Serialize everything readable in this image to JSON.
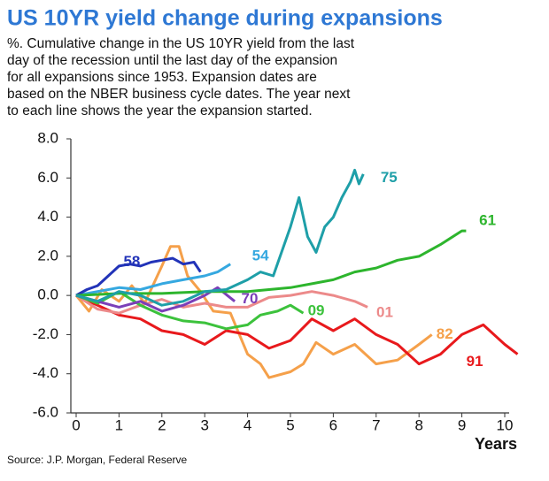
{
  "chart_data": {
    "type": "line",
    "title": "US 10YR yield change during expansions",
    "subtitle": [
      "%. Cumulative change in the US 10YR yield from the last",
      "day of the recession until the last day of the expansion",
      "for all expansions since 1953. Expansion dates are",
      "based on the NBER business cycle dates. The year next",
      "to each line shows the year the expansion started."
    ],
    "x_label": "Years",
    "source": "Source: J.P. Morgan, Federal Reserve",
    "xlim": [
      0,
      10
    ],
    "ylim": [
      -6,
      8
    ],
    "xticks": [
      0,
      1,
      2,
      3,
      4,
      5,
      6,
      7,
      8,
      9,
      10
    ],
    "yticks": [
      {
        "value": -6,
        "label": "-6.0"
      },
      {
        "value": -4,
        "label": "-4.0"
      },
      {
        "value": -2,
        "label": "-2.0"
      },
      {
        "value": 0,
        "label": "0.0"
      },
      {
        "value": 2,
        "label": "2.0"
      },
      {
        "value": 4,
        "label": "4.0"
      },
      {
        "value": 6,
        "label": "6.0"
      },
      {
        "value": 8,
        "label": "8.0"
      }
    ],
    "series": [
      {
        "name": "82",
        "color": "#F5A04A",
        "x": [
          0,
          0.3,
          0.6,
          1,
          1.3,
          1.6,
          2,
          2.2,
          2.4,
          2.6,
          2.9,
          3.2,
          3.6,
          4,
          4.3,
          4.5,
          5,
          5.3,
          5.6,
          6,
          6.5,
          7,
          7.5,
          8,
          8.3
        ],
        "values": [
          0,
          -0.8,
          0.3,
          -0.3,
          0.5,
          -0.4,
          1.5,
          2.5,
          2.5,
          1,
          0.2,
          -0.8,
          -0.9,
          -3,
          -3.5,
          -4.2,
          -3.9,
          -3.5,
          -2.4,
          -3,
          -2.5,
          -3.5,
          -3.3,
          -2.5,
          -2
        ]
      },
      {
        "name": "91",
        "color": "#E8191C",
        "x": [
          0,
          0.5,
          1,
          1.5,
          2,
          2.5,
          3,
          3.5,
          4,
          4.5,
          5,
          5.5,
          6,
          6.5,
          7,
          7.5,
          8,
          8.5,
          9,
          9.5,
          10,
          10.3
        ],
        "values": [
          0,
          -0.5,
          -1,
          -1.2,
          -1.8,
          -2,
          -2.5,
          -1.8,
          -2,
          -2.7,
          -2.3,
          -1.2,
          -1.8,
          -1.2,
          -2,
          -2.5,
          -3.5,
          -3,
          -2,
          -1.5,
          -2.5,
          -3
        ]
      },
      {
        "name": "01",
        "color": "#EC8A8A",
        "x": [
          0,
          0.5,
          1,
          1.5,
          2,
          2.5,
          3,
          3.5,
          4,
          4.5,
          5,
          5.5,
          6,
          6.5,
          6.8
        ],
        "values": [
          0,
          -0.7,
          -0.9,
          -0.5,
          -0.2,
          -0.6,
          -0.4,
          -0.6,
          -0.6,
          -0.1,
          0,
          0.2,
          0,
          -0.3,
          -0.6
        ]
      },
      {
        "name": "09",
        "color": "#3CC23C",
        "x": [
          0,
          0.5,
          1,
          1.5,
          2,
          2.5,
          3,
          3.5,
          4,
          4.3,
          4.7,
          5,
          5.3
        ],
        "values": [
          0,
          -0.4,
          0.2,
          -0.5,
          -1,
          -1.3,
          -1.4,
          -1.7,
          -1.5,
          -1,
          -0.8,
          -0.5,
          -0.9
        ]
      },
      {
        "name": "70",
        "color": "#7B3FB8",
        "x": [
          0,
          0.5,
          1,
          1.5,
          2,
          2.5,
          3,
          3.3,
          3.7
        ],
        "values": [
          0,
          -0.3,
          -0.6,
          -0.3,
          -0.8,
          -0.5,
          0,
          0.4,
          -0.3
        ]
      },
      {
        "name": "54",
        "color": "#35A8E0",
        "x": [
          0,
          0.5,
          1,
          1.5,
          2,
          2.5,
          3,
          3.3,
          3.6
        ],
        "values": [
          0,
          0.2,
          0.4,
          0.3,
          0.6,
          0.8,
          1,
          1.2,
          1.6
        ]
      },
      {
        "name": "58",
        "color": "#2233B8",
        "x": [
          0,
          0.25,
          0.5,
          0.75,
          1,
          1.25,
          1.5,
          1.75,
          2,
          2.25,
          2.5,
          2.75,
          2.9
        ],
        "values": [
          0,
          0.3,
          0.5,
          1,
          1.5,
          1.6,
          1.5,
          1.7,
          1.8,
          1.9,
          1.6,
          1.7,
          1.2
        ]
      },
      {
        "name": "61",
        "color": "#2DB52D",
        "x": [
          0,
          1,
          2,
          3,
          4,
          5,
          5.5,
          6,
          6.5,
          7,
          7.5,
          8,
          8.5,
          9,
          9.1
        ],
        "values": [
          0,
          0.1,
          0.1,
          0.2,
          0.2,
          0.4,
          0.6,
          0.8,
          1.2,
          1.4,
          1.8,
          2,
          2.6,
          3.3,
          3.3
        ]
      },
      {
        "name": "75",
        "color": "#1E9FA8",
        "x": [
          0,
          0.5,
          1,
          1.5,
          2,
          2.5,
          3,
          3.5,
          4,
          4.3,
          4.6,
          5,
          5.2,
          5.4,
          5.6,
          5.8,
          6,
          6.2,
          6.4,
          6.5,
          6.6,
          6.7
        ],
        "values": [
          0,
          -0.3,
          0.2,
          0,
          -0.5,
          -0.3,
          0.2,
          0.3,
          0.8,
          1.2,
          1,
          3.5,
          5,
          3,
          2.2,
          3.5,
          4,
          5,
          5.8,
          6.4,
          5.7,
          6.2
        ]
      }
    ]
  }
}
